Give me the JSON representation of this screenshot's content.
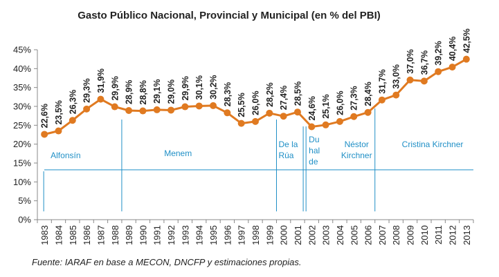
{
  "chart_data": {
    "type": "line",
    "title": "Gasto Público  Nacional, Provincial y Municipal (en % del PBI)",
    "xlabel": "",
    "ylabel": "",
    "ylim": [
      0,
      45
    ],
    "yticks": [
      "0%",
      "5%",
      "10%",
      "15%",
      "20%",
      "25%",
      "30%",
      "35%",
      "40%",
      "45%"
    ],
    "grid": false,
    "line_color": "#e07a21",
    "point_color": "#e07a21",
    "categories": [
      "1983",
      "1984",
      "1985",
      "1986",
      "1987",
      "1988",
      "1989",
      "1990",
      "1991",
      "1992",
      "1993",
      "1994",
      "1995",
      "1996",
      "1997",
      "1998",
      "1999",
      "2000",
      "2001",
      "2002",
      "2003",
      "2004",
      "2005",
      "2006",
      "2007",
      "2008",
      "2009",
      "2010",
      "2011",
      "2012",
      "2013"
    ],
    "series": [
      {
        "name": "Gasto Público",
        "values": [
          22.6,
          23.5,
          26.3,
          29.3,
          31.9,
          29.9,
          28.9,
          28.8,
          29.1,
          29.0,
          29.9,
          30.1,
          30.2,
          28.3,
          25.5,
          26.0,
          28.2,
          27.4,
          28.5,
          24.6,
          25.1,
          26.0,
          27.3,
          28.4,
          31.7,
          33.0,
          37.0,
          36.7,
          39.2,
          40.4,
          42.5
        ],
        "labels": [
          "22,6%",
          "23,5%",
          "26,3%",
          "29,3%",
          "31,9%",
          "29,9%",
          "28,9%",
          "28,8%",
          "29,1%",
          "29,0%",
          "29,9%",
          "30,1%",
          "30,2%",
          "28,3%",
          "25,5%",
          "26,0%",
          "28,2%",
          "27,4%",
          "28,5%",
          "24,6%",
          "25,1%",
          "26,0%",
          "27,3%",
          "28,4%",
          "31,7%",
          "33,0%",
          "37,0%",
          "36,7%",
          "39,2%",
          "40,4%",
          "42,5%"
        ]
      }
    ],
    "reference_line": {
      "value": 13.2,
      "color": "#1f8fc6"
    },
    "eras": [
      {
        "name": "Alfonsín",
        "lines": [
          "Alfonsín"
        ]
      },
      {
        "name": "Menem",
        "lines": [
          "Menem"
        ]
      },
      {
        "name": "De la Rúa",
        "lines": [
          "De la",
          "Rúa"
        ]
      },
      {
        "name": "Duhalde",
        "lines": [
          "Du",
          "hal",
          "de"
        ]
      },
      {
        "name": "Néstor Kirchner",
        "lines": [
          "Néstor",
          "Kirchner"
        ]
      },
      {
        "name": "Cristina Kirchner",
        "lines": [
          "Cristina Kirchner"
        ]
      }
    ],
    "era_color": "#1f8fc6",
    "source": "Fuente: IARAF en base a MECON, DNCFP y estimaciones propias."
  }
}
